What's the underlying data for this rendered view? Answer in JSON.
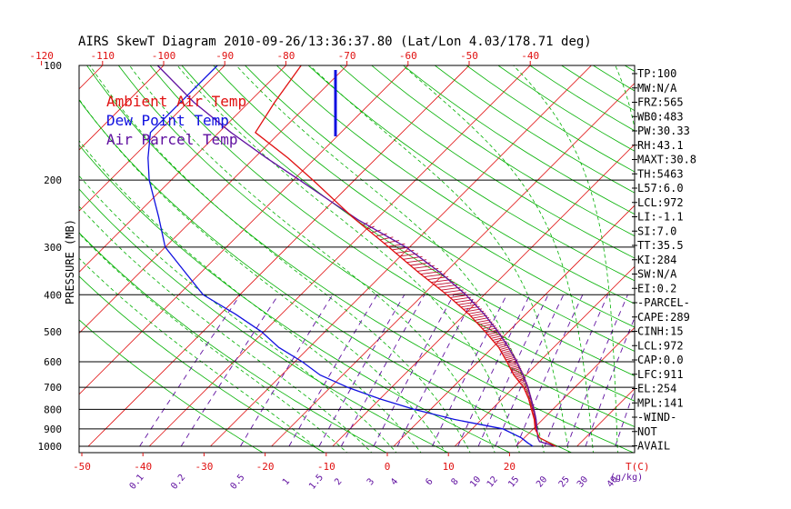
{
  "chart_data": {
    "type": "line",
    "title": "AIRS SkewT Diagram 2010-09-26/13:36:37.80 (Lat/Lon 4.03/178.71 deg)",
    "ylabel": "PRESSURE (MB)",
    "pressure_ticks": [
      "100",
      "200",
      "300",
      "400",
      "500",
      "600",
      "700",
      "800",
      "900",
      "1000"
    ],
    "pressure_levels": [
      100,
      200,
      300,
      400,
      500,
      600,
      700,
      800,
      900,
      1000
    ],
    "top_temp_ticks": [
      "-120",
      "-110",
      "-100",
      "-90",
      "-80",
      "-70",
      "-60",
      "-50",
      "-40"
    ],
    "bottom_temp_ticks": [
      "-50",
      "-40",
      "-30",
      "-20",
      "-10",
      "0",
      "10",
      "20"
    ],
    "bottom_axis_unit": "T(C)",
    "mixing_ratio_labels": [
      "0.1",
      "0.2",
      "0.5",
      "1",
      "1.5",
      "2",
      "3",
      "4",
      "6",
      "8",
      "10",
      "12",
      "15",
      "20",
      "25",
      "30",
      "40"
    ],
    "mixing_ratio_unit": "(g/kg)",
    "legend": [
      {
        "label": "Ambient Air Temp",
        "color": "#e01010"
      },
      {
        "label": "Dew Point Temp",
        "color": "#1010e0"
      },
      {
        "label": "Air Parcel Temp",
        "color": "#6010a0"
      }
    ],
    "series": [
      {
        "name": "Ambient Air Temp",
        "color": "#e01010",
        "points": [
          [
            1000,
            26.5
          ],
          [
            950,
            22.5
          ],
          [
            900,
            20.3
          ],
          [
            850,
            18.6
          ],
          [
            800,
            16.5
          ],
          [
            750,
            14.3
          ],
          [
            700,
            11.6
          ],
          [
            650,
            8.0
          ],
          [
            600,
            4.7
          ],
          [
            550,
            1.0
          ],
          [
            500,
            -3.8
          ],
          [
            450,
            -9.3
          ],
          [
            400,
            -16.1
          ],
          [
            350,
            -24.3
          ],
          [
            300,
            -33.4
          ],
          [
            250,
            -44.3
          ],
          [
            200,
            -56.8
          ],
          [
            175,
            -64.5
          ],
          [
            150,
            -74.0
          ],
          [
            125,
            -75.8
          ],
          [
            100,
            -77.5
          ]
        ]
      },
      {
        "name": "Dew Point Temp",
        "color": "#1010e0",
        "points": [
          [
            1000,
            22.8
          ],
          [
            980,
            21.4
          ],
          [
            950,
            19.5
          ],
          [
            900,
            15.0
          ],
          [
            850,
            5.5
          ],
          [
            800,
            -2.7
          ],
          [
            750,
            -10.1
          ],
          [
            700,
            -17.2
          ],
          [
            650,
            -23.7
          ],
          [
            600,
            -28.8
          ],
          [
            550,
            -35.0
          ],
          [
            500,
            -40.4
          ],
          [
            450,
            -47.5
          ],
          [
            400,
            -56.0
          ],
          [
            350,
            -62.5
          ],
          [
            300,
            -70.0
          ],
          [
            250,
            -76.0
          ],
          [
            200,
            -83.6
          ],
          [
            175,
            -87.4
          ],
          [
            150,
            -91.2
          ],
          [
            125,
            -91.2
          ],
          [
            100,
            -91.2
          ]
        ]
      },
      {
        "name": "Air Parcel Temp",
        "color": "#6010a0",
        "points": [
          [
            1000,
            26.5
          ],
          [
            972,
            23.1
          ],
          [
            950,
            22.2
          ],
          [
            900,
            20.6
          ],
          [
            850,
            18.9
          ],
          [
            800,
            16.9
          ],
          [
            750,
            14.7
          ],
          [
            700,
            12.3
          ],
          [
            650,
            9.5
          ],
          [
            600,
            6.3
          ],
          [
            550,
            2.6
          ],
          [
            500,
            -1.7
          ],
          [
            450,
            -6.8
          ],
          [
            400,
            -13.0
          ],
          [
            350,
            -20.8
          ],
          [
            300,
            -30.6
          ],
          [
            254,
            -43.0
          ],
          [
            200,
            -59.0
          ],
          [
            175,
            -68.0
          ],
          [
            150,
            -78.0
          ],
          [
            125,
            -89.0
          ],
          [
            100,
            -101.0
          ]
        ]
      }
    ],
    "annotations": [
      "TP:100",
      "MW:N/A",
      "FRZ:565",
      "WB0:483",
      "PW:30.33",
      "RH:43.1",
      "MAXT:30.8",
      "TH:5463",
      "L57:6.0",
      "LCL:972",
      "LI:-1.1",
      "SI:7.0",
      "TT:35.5",
      "KI:284",
      "SW:N/A",
      "EI:0.2",
      "-PARCEL-",
      "CAPE:289",
      "CINH:15",
      "LCL:972",
      "CAP:0.0",
      "LFC:911",
      "EL:254",
      "MPL:141",
      "-WIND-",
      "NOT",
      "AVAIL"
    ],
    "colors": {
      "isotherm": "#e01010",
      "dry_adiabat": "#00b000",
      "moist_adiabat": "#00b000",
      "mixing_ratio": "#6010a0",
      "isobar": "#000000",
      "temp_axis": "#e01010"
    }
  }
}
